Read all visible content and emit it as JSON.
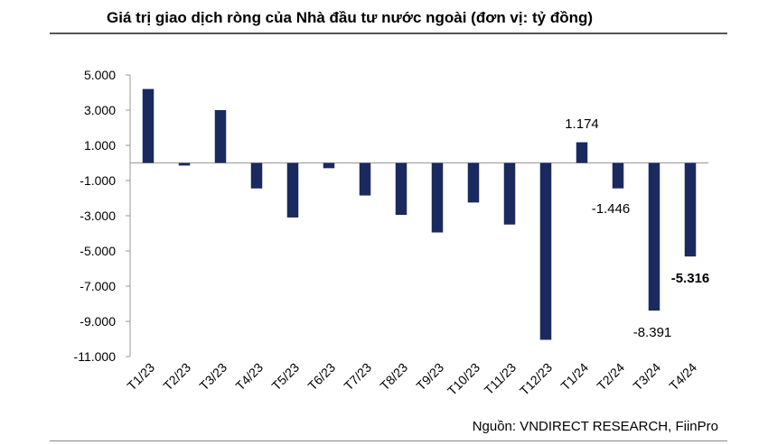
{
  "title": "Giá trị giao dịch ròng của Nhà đầu tư nước ngoài (đơn vị: tỷ đồng)",
  "source": "Nguồn: VNDIRECT RESEARCH, FiinPro",
  "chart_data": {
    "type": "bar",
    "title": "Giá trị giao dịch ròng của Nhà đầu tư nước ngoài (đơn vị: tỷ đồng)",
    "xlabel": "",
    "ylabel": "",
    "categories": [
      "T1/23",
      "T2/23",
      "T3/23",
      "T4/23",
      "T5/23",
      "T6/23",
      "T7/23",
      "T8/23",
      "T9/23",
      "T10/23",
      "T11/23",
      "T12/23",
      "T1/24",
      "T2/24",
      "T3/24",
      "T4/24"
    ],
    "values": [
      4200,
      -150,
      3000,
      -1450,
      -3100,
      -300,
      -1850,
      -2950,
      -3950,
      -2250,
      -3500,
      -10050,
      1174,
      -1446,
      -8391,
      -5316
    ],
    "ylim": [
      -11000,
      5000
    ],
    "yticks": [
      5000,
      3000,
      1000,
      -1000,
      -3000,
      -5000,
      -7000,
      -9000,
      -11000
    ],
    "ytick_labels": [
      "5.000",
      "3.000",
      "1.000",
      "-1.000",
      "-3.000",
      "-5.000",
      "-7.000",
      "-9.000",
      "-11.000"
    ],
    "bar_color": "#1a2a5e",
    "grid": false,
    "legend": "none",
    "data_labels": [
      {
        "category": "T1/24",
        "text": "1.174",
        "bold": false
      },
      {
        "category": "T2/24",
        "text": "-1.446",
        "bold": false
      },
      {
        "category": "T3/24",
        "text": "-8.391",
        "bold": false
      },
      {
        "category": "T4/24",
        "text": "-5.316",
        "bold": true
      }
    ]
  }
}
